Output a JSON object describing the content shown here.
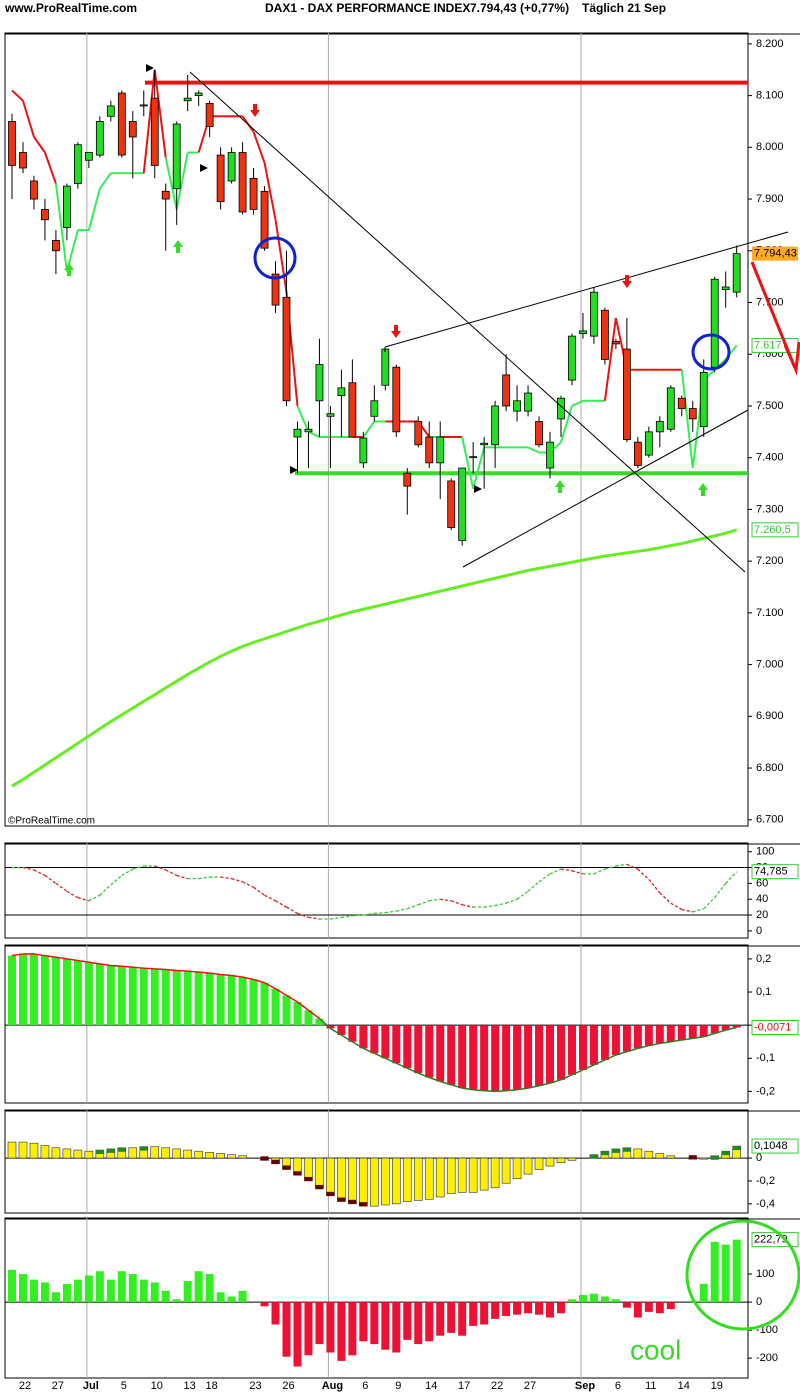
{
  "header": {
    "site": "www.ProRealTime.com",
    "instrument": "DAX1 - DAX PERFORMANCE INDEX",
    "quote": "7.794,43 (+0,77%)",
    "period": "Täglich  21 Sep",
    "watermark": "©ProRealTime.com",
    "annotation": "cool"
  },
  "chart_data": [
    {
      "type": "candlestick",
      "ohlc": [
        [
          8050,
          8065,
          7900,
          7965
        ],
        [
          7990,
          8010,
          7950,
          7960
        ],
        [
          7935,
          7945,
          7880,
          7900
        ],
        [
          7880,
          7900,
          7820,
          7860
        ],
        [
          7820,
          7840,
          7755,
          7800
        ],
        [
          7845,
          7930,
          7820,
          7925
        ],
        [
          7930,
          8010,
          7920,
          8005
        ],
        [
          7975,
          7990,
          7960,
          7990
        ],
        [
          7985,
          8060,
          7980,
          8050
        ],
        [
          8060,
          8090,
          8050,
          8080
        ],
        [
          8105,
          8110,
          7980,
          7985
        ],
        [
          8050,
          8070,
          7940,
          8020
        ],
        [
          8080,
          8110,
          8060,
          8082
        ],
        [
          8095,
          8150,
          7940,
          7965
        ],
        [
          7915,
          7930,
          7800,
          7900
        ],
        [
          7920,
          8050,
          7850,
          8045
        ],
        [
          8090,
          8140,
          8070,
          8095
        ],
        [
          8100,
          8110,
          8080,
          8105
        ],
        [
          8085,
          8090,
          8020,
          8040
        ],
        [
          7985,
          8000,
          7880,
          7895
        ],
        [
          7935,
          8000,
          7930,
          7990
        ],
        [
          7990,
          8010,
          7870,
          7875
        ],
        [
          7940,
          7960,
          7870,
          7880
        ],
        [
          7915,
          7925,
          7800,
          7805
        ],
        [
          7755,
          7780,
          7680,
          7695
        ],
        [
          7710,
          7800,
          7500,
          7510
        ],
        [
          7440,
          7470,
          7370,
          7455
        ],
        [
          7450,
          7470,
          7380,
          7455
        ],
        [
          7510,
          7630,
          7440,
          7580
        ],
        [
          7480,
          7500,
          7380,
          7485
        ],
        [
          7520,
          7570,
          7440,
          7535
        ],
        [
          7545,
          7590,
          7440,
          7440
        ],
        [
          7390,
          7450,
          7380,
          7438
        ],
        [
          7480,
          7540,
          7470,
          7510
        ],
        [
          7540,
          7610,
          7530,
          7610
        ],
        [
          7575,
          7580,
          7440,
          7450
        ],
        [
          7370,
          7380,
          7290,
          7345
        ],
        [
          7470,
          7480,
          7420,
          7425
        ],
        [
          7440,
          7470,
          7380,
          7390
        ],
        [
          7390,
          7470,
          7320,
          7440
        ],
        [
          7355,
          7360,
          7260,
          7265
        ],
        [
          7240,
          7380,
          7230,
          7380
        ],
        [
          7400,
          7430,
          7370,
          7402
        ],
        [
          7425,
          7440,
          7340,
          7428
        ],
        [
          7425,
          7510,
          7380,
          7500
        ],
        [
          7560,
          7600,
          7490,
          7500
        ],
        [
          7490,
          7540,
          7470,
          7510
        ],
        [
          7490,
          7540,
          7480,
          7525
        ],
        [
          7470,
          7480,
          7420,
          7425
        ],
        [
          7380,
          7450,
          7360,
          7430
        ],
        [
          7475,
          7520,
          7440,
          7515
        ],
        [
          7550,
          7640,
          7540,
          7635
        ],
        [
          7640,
          7680,
          7630,
          7645
        ],
        [
          7635,
          7730,
          7620,
          7720
        ],
        [
          7685,
          7690,
          7580,
          7590
        ],
        [
          7625,
          7630,
          7610,
          7620
        ],
        [
          7610,
          7670,
          7430,
          7435
        ],
        [
          7430,
          7440,
          7380,
          7385
        ],
        [
          7405,
          7460,
          7400,
          7450
        ],
        [
          7450,
          7480,
          7420,
          7470
        ],
        [
          7455,
          7540,
          7450,
          7535
        ],
        [
          7515,
          7520,
          7480,
          7495
        ],
        [
          7495,
          7510,
          7450,
          7475
        ],
        [
          7460,
          7590,
          7440,
          7565
        ],
        [
          7575,
          7750,
          7565,
          7745
        ],
        [
          7725,
          7760,
          7690,
          7730
        ],
        [
          7720,
          7810,
          7710,
          7794.43
        ]
      ],
      "up_color": "#22dd22",
      "down_color": "#ee3311",
      "stop": [
        8110,
        8090,
        8020,
        7990,
        7930,
        7760,
        7840,
        7840,
        7920,
        7950,
        7950,
        7950,
        7950,
        8150,
        7980,
        7880,
        7990,
        7990,
        8060,
        8060,
        8060,
        8060,
        8030,
        7970,
        7860,
        7720,
        7500,
        7450,
        7440,
        7440,
        7440,
        7440,
        7440,
        7470,
        7470,
        7470,
        7470,
        7470,
        7440,
        7440,
        7440,
        7440,
        7340,
        7420,
        7420,
        7420,
        7420,
        7420,
        7410,
        7410,
        7430,
        7500,
        7510,
        7510,
        7510,
        7670,
        7570,
        7570,
        7570,
        7570,
        7570,
        7570,
        7380,
        7550,
        7570,
        7590,
        7617
      ],
      "ma": [
        6765,
        6778,
        6792,
        6806,
        6820,
        6834,
        6848,
        6862,
        6876,
        6890,
        6903,
        6916,
        6929,
        6942,
        6955,
        6968,
        6981,
        6993,
        7005,
        7016,
        7026,
        7035,
        7043,
        7050,
        7057,
        7064,
        7071,
        7078,
        7084,
        7090,
        7096,
        7102,
        7107,
        7112,
        7117,
        7122,
        7127,
        7132,
        7137,
        7142,
        7147,
        7152,
        7157,
        7162,
        7167,
        7172,
        7177,
        7182,
        7186,
        7190,
        7194,
        7198,
        7202,
        7206,
        7210,
        7213,
        7216,
        7219,
        7222,
        7226,
        7230,
        7234,
        7239,
        7244,
        7249,
        7254,
        7260.5
      ],
      "ma_color": "#66ee22",
      "levels": [
        {
          "value": 8125,
          "color": "#ee1111"
        },
        {
          "value": 7370,
          "color": "#33dd22"
        }
      ],
      "last_labels": {
        "close": "7.794,43",
        "stop": "7.617",
        "ma": "7.260,5"
      },
      "ylim": [
        6688,
        8221
      ],
      "yticks": [
        {
          "value": 8200,
          "label": "8.200"
        },
        {
          "value": 8100,
          "label": "8.100"
        },
        {
          "value": 8000,
          "label": "8.000"
        },
        {
          "value": 7900,
          "label": "7.900"
        },
        {
          "value": 7800,
          "label": "7.800"
        },
        {
          "value": 7700,
          "label": "7.700"
        },
        {
          "value": 7600,
          "label": "7.600"
        },
        {
          "value": 7500,
          "label": "7.500"
        },
        {
          "value": 7400,
          "label": "7.400"
        },
        {
          "value": 7300,
          "label": "7.300"
        },
        {
          "value": 7200,
          "label": "7.200"
        },
        {
          "value": 7100,
          "label": "7.100"
        },
        {
          "value": 7000,
          "label": "7.000"
        },
        {
          "value": 6900,
          "label": "6.900"
        },
        {
          "value": 6800,
          "label": "6.800"
        },
        {
          "value": 6700,
          "label": "6.700"
        }
      ]
    },
    {
      "type": "line",
      "values": [
        80,
        80,
        77,
        70,
        60,
        50,
        42,
        38,
        45,
        58,
        70,
        78,
        82,
        82,
        77,
        70,
        66,
        66,
        68,
        68,
        66,
        62,
        55,
        45,
        38,
        30,
        22,
        17,
        15,
        15,
        17,
        19,
        20,
        22,
        23,
        25,
        28,
        33,
        38,
        40,
        38,
        33,
        30,
        30,
        32,
        35,
        40,
        50,
        62,
        72,
        78,
        76,
        72,
        72,
        78,
        82,
        84,
        78,
        65,
        48,
        35,
        27,
        24,
        28,
        42,
        60,
        74.785
      ],
      "value_label": "74,785",
      "up_color": "#33cc33",
      "down_color": "#dd2222",
      "levels": [
        80,
        20
      ],
      "ylim": [
        -9,
        111
      ],
      "yticks": [
        100,
        80,
        60,
        40,
        20,
        0
      ]
    },
    {
      "type": "bar",
      "values": [
        0.21,
        0.215,
        0.215,
        0.21,
        0.205,
        0.2,
        0.195,
        0.19,
        0.185,
        0.18,
        0.178,
        0.175,
        0.172,
        0.17,
        0.168,
        0.165,
        0.163,
        0.16,
        0.157,
        0.153,
        0.15,
        0.145,
        0.138,
        0.128,
        0.11,
        0.09,
        0.07,
        0.045,
        0.02,
        -0.01,
        -0.03,
        -0.05,
        -0.07,
        -0.085,
        -0.1,
        -0.115,
        -0.13,
        -0.145,
        -0.158,
        -0.17,
        -0.18,
        -0.19,
        -0.195,
        -0.198,
        -0.2,
        -0.198,
        -0.195,
        -0.19,
        -0.183,
        -0.175,
        -0.165,
        -0.15,
        -0.135,
        -0.12,
        -0.105,
        -0.09,
        -0.08,
        -0.07,
        -0.062,
        -0.055,
        -0.05,
        -0.045,
        -0.04,
        -0.035,
        -0.025,
        -0.015,
        -0.0071
      ],
      "value_label": "-0,0071",
      "positive_color": "#33ee22",
      "negative_color": "#ee1133",
      "outline": true,
      "ylim": [
        -0.235,
        0.242
      ],
      "yticks": [
        {
          "value": 0.2,
          "label": "0,2"
        },
        {
          "value": 0.1,
          "label": "0,1"
        },
        0,
        {
          "value": -0.1,
          "label": "-0,1"
        },
        {
          "value": -0.2,
          "label": "-0,2"
        }
      ]
    },
    {
      "type": "bar",
      "values": [
        0.14,
        0.14,
        0.13,
        0.11,
        0.09,
        0.08,
        0.07,
        0.06,
        0.07,
        0.08,
        0.09,
        0.09,
        0.1,
        0.1,
        0.09,
        0.08,
        0.07,
        0.06,
        0.05,
        0.04,
        0.03,
        0.02,
        0.0,
        -0.02,
        -0.05,
        -0.1,
        -0.15,
        -0.2,
        -0.27,
        -0.33,
        -0.38,
        -0.4,
        -0.42,
        -0.42,
        -0.41,
        -0.4,
        -0.38,
        -0.37,
        -0.36,
        -0.34,
        -0.31,
        -0.3,
        -0.3,
        -0.28,
        -0.26,
        -0.22,
        -0.18,
        -0.14,
        -0.1,
        -0.07,
        -0.04,
        -0.02,
        0.0,
        0.03,
        0.06,
        0.08,
        0.09,
        0.08,
        0.06,
        0.04,
        0.02,
        0.0,
        -0.01,
        -0.01,
        0.02,
        0.06,
        0.1048
      ],
      "value_label": "0,1048",
      "color": "#ffee00",
      "rise_color": "#228822",
      "fall_color": "#660000",
      "ylim": [
        -0.48,
        0.42
      ],
      "yticks": [
        0,
        {
          "value": -0.2,
          "label": "-0,2"
        },
        {
          "value": -0.4,
          "label": "-0,4"
        }
      ]
    },
    {
      "type": "bar",
      "values": [
        115,
        100,
        80,
        70,
        35,
        65,
        80,
        95,
        110,
        80,
        110,
        100,
        80,
        70,
        40,
        10,
        75,
        110,
        100,
        35,
        20,
        40,
        0,
        -15,
        -80,
        -195,
        -230,
        -190,
        -150,
        -180,
        -210,
        -190,
        -140,
        -150,
        -170,
        -180,
        -135,
        -150,
        -140,
        -120,
        -110,
        -120,
        -85,
        -80,
        -60,
        -50,
        -45,
        -40,
        -45,
        -55,
        -40,
        10,
        25,
        30,
        20,
        10,
        -20,
        -55,
        -35,
        -40,
        -25,
        0,
        5,
        65,
        215,
        205,
        222.79
      ],
      "value_label": "222,79",
      "positive_color": "#33ee22",
      "negative_color": "#ee1133",
      "ylim": [
        -271,
        300
      ],
      "yticks": [
        100,
        0,
        -100,
        -200
      ],
      "categories": [
        null,
        "22",
        null,
        null,
        "27",
        null,
        null,
        "Jul",
        null,
        null,
        "5",
        null,
        null,
        "10",
        null,
        null,
        "13",
        null,
        "18",
        null,
        null,
        null,
        "23",
        null,
        null,
        "26",
        null,
        null,
        null,
        "Aug",
        null,
        null,
        "6",
        null,
        null,
        "9",
        null,
        null,
        "14",
        null,
        null,
        "17",
        null,
        null,
        "22",
        null,
        null,
        "27",
        null,
        null,
        null,
        null,
        "Sep",
        null,
        null,
        "6",
        null,
        null,
        "11",
        null,
        null,
        "14",
        null,
        null,
        "19",
        null,
        null
      ]
    }
  ]
}
